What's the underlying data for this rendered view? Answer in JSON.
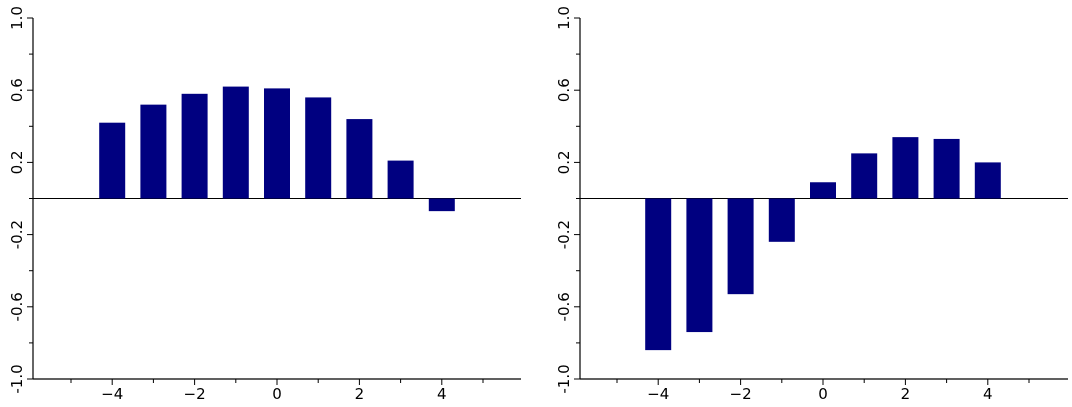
{
  "chart_data": [
    {
      "type": "bar",
      "title": "",
      "xlabel": "",
      "ylabel": "",
      "ylim": [
        -1.0,
        1.0
      ],
      "yticks_labeled": [
        "-1.0",
        "-0.6",
        "-0.2",
        "0.2",
        "0.6",
        "1.0"
      ],
      "yticks_labeled_values": [
        -1.0,
        -0.6,
        -0.2,
        0.2,
        0.6,
        1.0
      ],
      "yticks_minor_values": [
        -0.8,
        -0.4,
        0.0,
        0.4,
        0.8
      ],
      "xticks_labeled": [
        "−4",
        "−2",
        "0",
        "2",
        "4"
      ],
      "xticks_labeled_values": [
        -4,
        -2,
        0,
        2,
        4
      ],
      "xticks_minor_values": [
        -6,
        -5,
        -3,
        -1,
        1,
        3,
        5
      ],
      "xlim": [
        -6,
        5.9
      ],
      "zero_line": true,
      "bar_color": "#000080",
      "x": [
        -4,
        -3,
        -2,
        -1,
        0,
        1,
        2,
        3,
        4
      ],
      "values": [
        0.42,
        0.52,
        0.58,
        0.62,
        0.61,
        0.56,
        0.44,
        0.21,
        -0.07
      ]
    },
    {
      "type": "bar",
      "title": "",
      "xlabel": "",
      "ylabel": "",
      "ylim": [
        -1.0,
        1.0
      ],
      "yticks_labeled": [
        "-1.0",
        "-0.6",
        "-0.2",
        "0.2",
        "0.6",
        "1.0"
      ],
      "yticks_labeled_values": [
        -1.0,
        -0.6,
        -0.2,
        0.2,
        0.6,
        1.0
      ],
      "yticks_minor_values": [
        -0.8,
        -0.4,
        0.0,
        0.4,
        0.8
      ],
      "xticks_labeled": [
        "−4",
        "−2",
        "0",
        "2",
        "4"
      ],
      "xticks_labeled_values": [
        -4,
        -2,
        0,
        2,
        4
      ],
      "xticks_minor_values": [
        -6,
        -5,
        -3,
        -1,
        1,
        3,
        5
      ],
      "xlim": [
        -6,
        5.9
      ],
      "zero_line": true,
      "bar_color": "#000080",
      "x": [
        -4,
        -3,
        -2,
        -1,
        0,
        1,
        2,
        3,
        4
      ],
      "values": [
        -0.84,
        -0.74,
        -0.53,
        -0.24,
        0.09,
        0.25,
        0.34,
        0.33,
        0.2
      ]
    }
  ]
}
